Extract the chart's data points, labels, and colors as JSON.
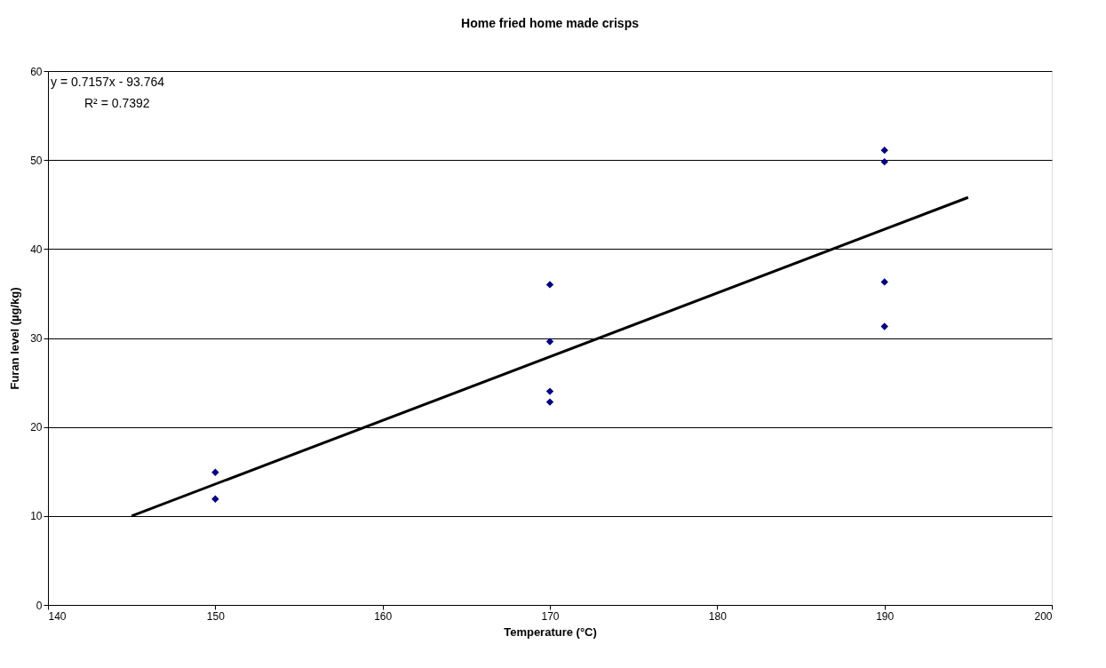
{
  "chart_data": {
    "type": "scatter",
    "title": "Home fried home made crisps",
    "xlabel": "Temperature (°C)",
    "ylabel": "Furan level (µg/kg)",
    "series": [
      {
        "color": "#000080",
        "marker": "diamond",
        "x": [
          150,
          150,
          170,
          170,
          170,
          170,
          190,
          190,
          190,
          190
        ],
        "values": [
          14.9,
          11.9,
          36.0,
          29.6,
          24.0,
          22.8,
          51.1,
          49.8,
          36.3,
          31.3
        ]
      },
      {
        "type": "line",
        "line_style": "solid",
        "color": "#000000",
        "x": [
          145,
          195
        ],
        "values": [
          10.0,
          45.8
        ]
      }
    ],
    "annotations": [
      "y = 0.7157x - 93.764",
      "R² = 0.7392"
    ],
    "xlim": [
      140,
      200
    ],
    "xticks": [
      140,
      150,
      160,
      170,
      180,
      190,
      200
    ],
    "ylim": [
      0,
      60
    ],
    "yticks": [
      0,
      10,
      20,
      30,
      40,
      50,
      60
    ],
    "grid": "y"
  }
}
